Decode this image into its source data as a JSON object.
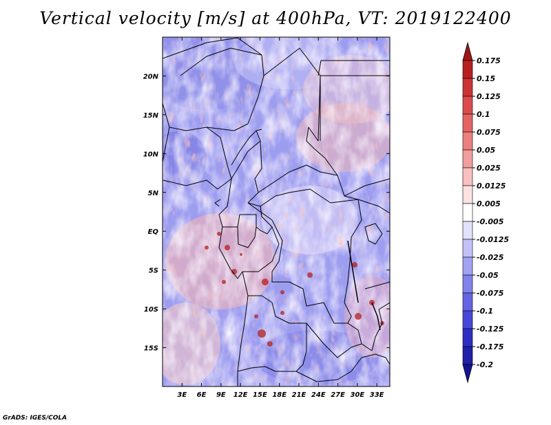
{
  "title": "Vertical velocity [m/s] at 400hPa, VT: 2019122400",
  "credit": "GrADS: IGES/COLA",
  "map": {
    "lon_range": [
      0,
      35
    ],
    "lat_range": [
      -20,
      25
    ],
    "x_ticks": [
      "3E",
      "6E",
      "9E",
      "12E",
      "15E",
      "18E",
      "21E",
      "24E",
      "27E",
      "30E",
      "33E"
    ],
    "x_tick_values": [
      3,
      6,
      9,
      12,
      15,
      18,
      21,
      24,
      27,
      30,
      33
    ],
    "y_ticks": [
      "20N",
      "15N",
      "10N",
      "5N",
      "EQ",
      "5S",
      "10S",
      "15S"
    ],
    "y_tick_values": [
      20,
      15,
      10,
      5,
      0,
      -5,
      -10,
      -15
    ]
  },
  "colorbar": {
    "labels": [
      "0.175",
      "0.15",
      "0.125",
      "0.1",
      "0.075",
      "0.05",
      "0.025",
      "0.0125",
      "0.005",
      "-0.005",
      "-0.0125",
      "-0.025",
      "-0.05",
      "-0.075",
      "-0.1",
      "-0.125",
      "-0.175",
      "-0.2"
    ],
    "colors": [
      "#a01515",
      "#b82020",
      "#cc3434",
      "#dc4c4c",
      "#e46464",
      "#ec8080",
      "#f29e9e",
      "#f8c0c0",
      "#fce2e2",
      "#ffffff",
      "#e2e2fc",
      "#c2c2f8",
      "#a2a2f2",
      "#8282ec",
      "#6464e4",
      "#4848da",
      "#2e2ec4",
      "#2020a8",
      "#141490"
    ]
  }
}
